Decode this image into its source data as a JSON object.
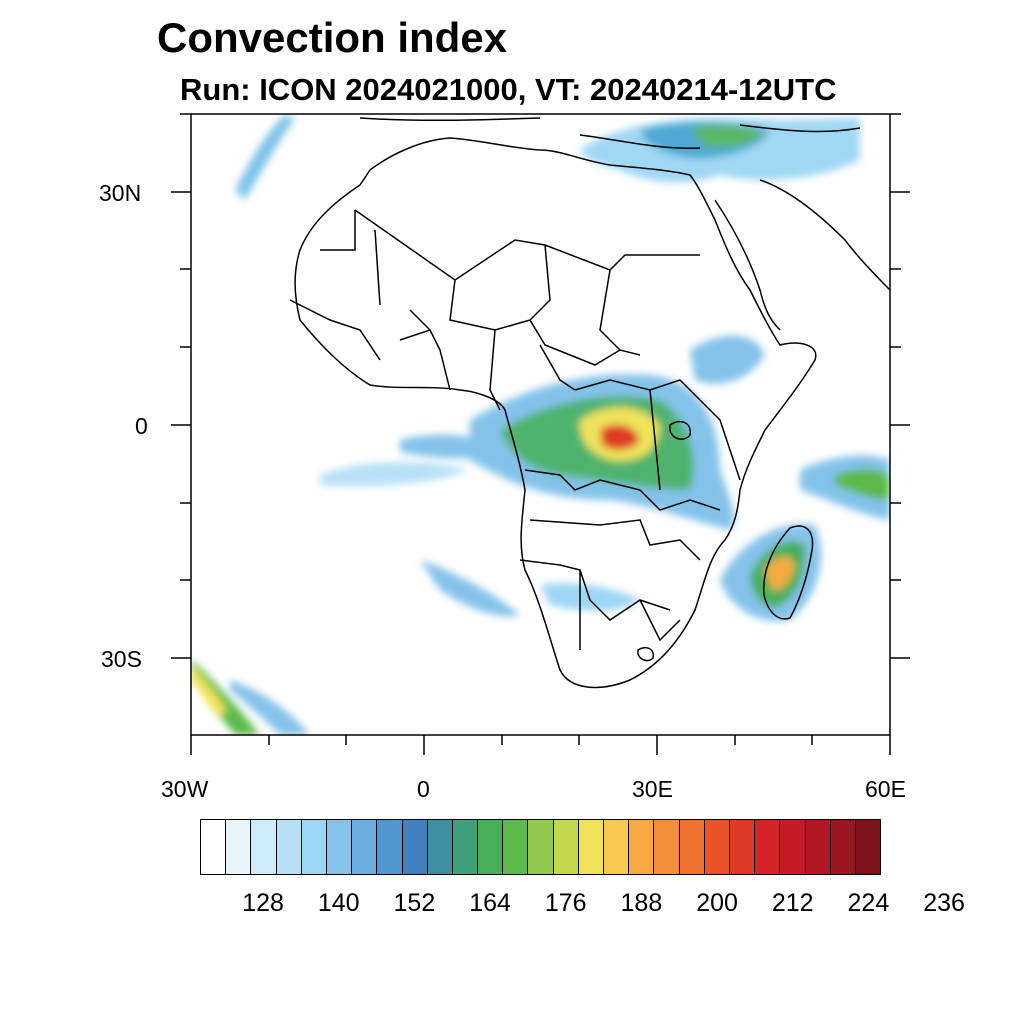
{
  "title": "Convection index",
  "subtitle": "Run: ICON 2024021000,  VT: 20240214-12UTC",
  "axes": {
    "lat_labels": [
      "30N",
      "0",
      "30S"
    ],
    "lon_labels": [
      "30W",
      "0",
      "30E",
      "60E"
    ]
  },
  "colorbar": {
    "colors": [
      "#ffffff",
      "#e8f5fd",
      "#cfeaf9",
      "#b7e0f7",
      "#9dd6f5",
      "#84c2ea",
      "#6aaee0",
      "#5096d0",
      "#3f80bf",
      "#3b8f9e",
      "#3fa07a",
      "#46b058",
      "#5cba4a",
      "#93c94f",
      "#c3d64f",
      "#eee35a",
      "#f9c84e",
      "#f7aa42",
      "#f48e38",
      "#ef6f2e",
      "#e75428",
      "#df3a26",
      "#d32527",
      "#c51a27",
      "#b11724",
      "#9c1620",
      "#7e141b"
    ],
    "tick_labels": [
      "128",
      "140",
      "152",
      "164",
      "176",
      "188",
      "200",
      "212",
      "224",
      "236"
    ]
  },
  "legend_title": "",
  "map": {
    "region": "Africa",
    "lon_range": [
      -30,
      60
    ],
    "lat_range": [
      -40,
      40
    ]
  }
}
